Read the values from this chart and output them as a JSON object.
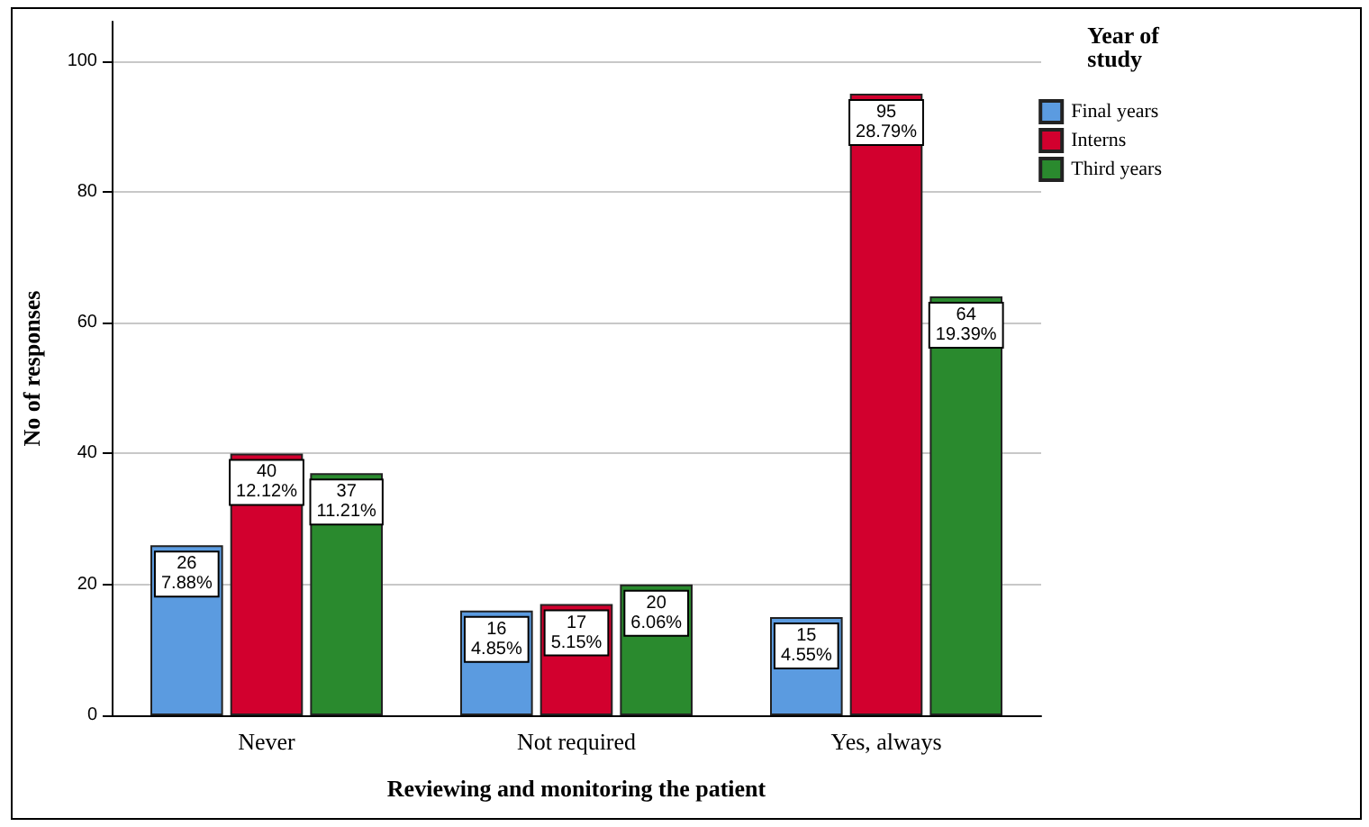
{
  "chart_data": {
    "type": "bar",
    "xlabel": "Reviewing and monitoring the patient",
    "ylabel": "No of responses",
    "legend_title": "Year of study",
    "categories": [
      "Never",
      "Not required",
      "Yes, always"
    ],
    "series": [
      {
        "name": "Final years",
        "color": "#5b9be0",
        "values": [
          26,
          16,
          15
        ],
        "value_labels": [
          "26\n7.88%",
          "16\n4.85%",
          "15\n4.55%"
        ]
      },
      {
        "name": "Interns",
        "color": "#d2002e",
        "values": [
          40,
          17,
          95
        ],
        "value_labels": [
          "40\n12.12%",
          "17\n5.15%",
          "95\n28.79%"
        ]
      },
      {
        "name": "Third years",
        "color": "#2a8a2e",
        "values": [
          37,
          20,
          64
        ],
        "value_labels": [
          "37\n11.21%",
          "20\n6.06%",
          "64\n19.39%"
        ]
      }
    ],
    "ylim": [
      0,
      106
    ],
    "yticks": [
      0,
      20,
      40,
      60,
      80,
      100
    ],
    "grid": "y",
    "legend": "top right"
  }
}
